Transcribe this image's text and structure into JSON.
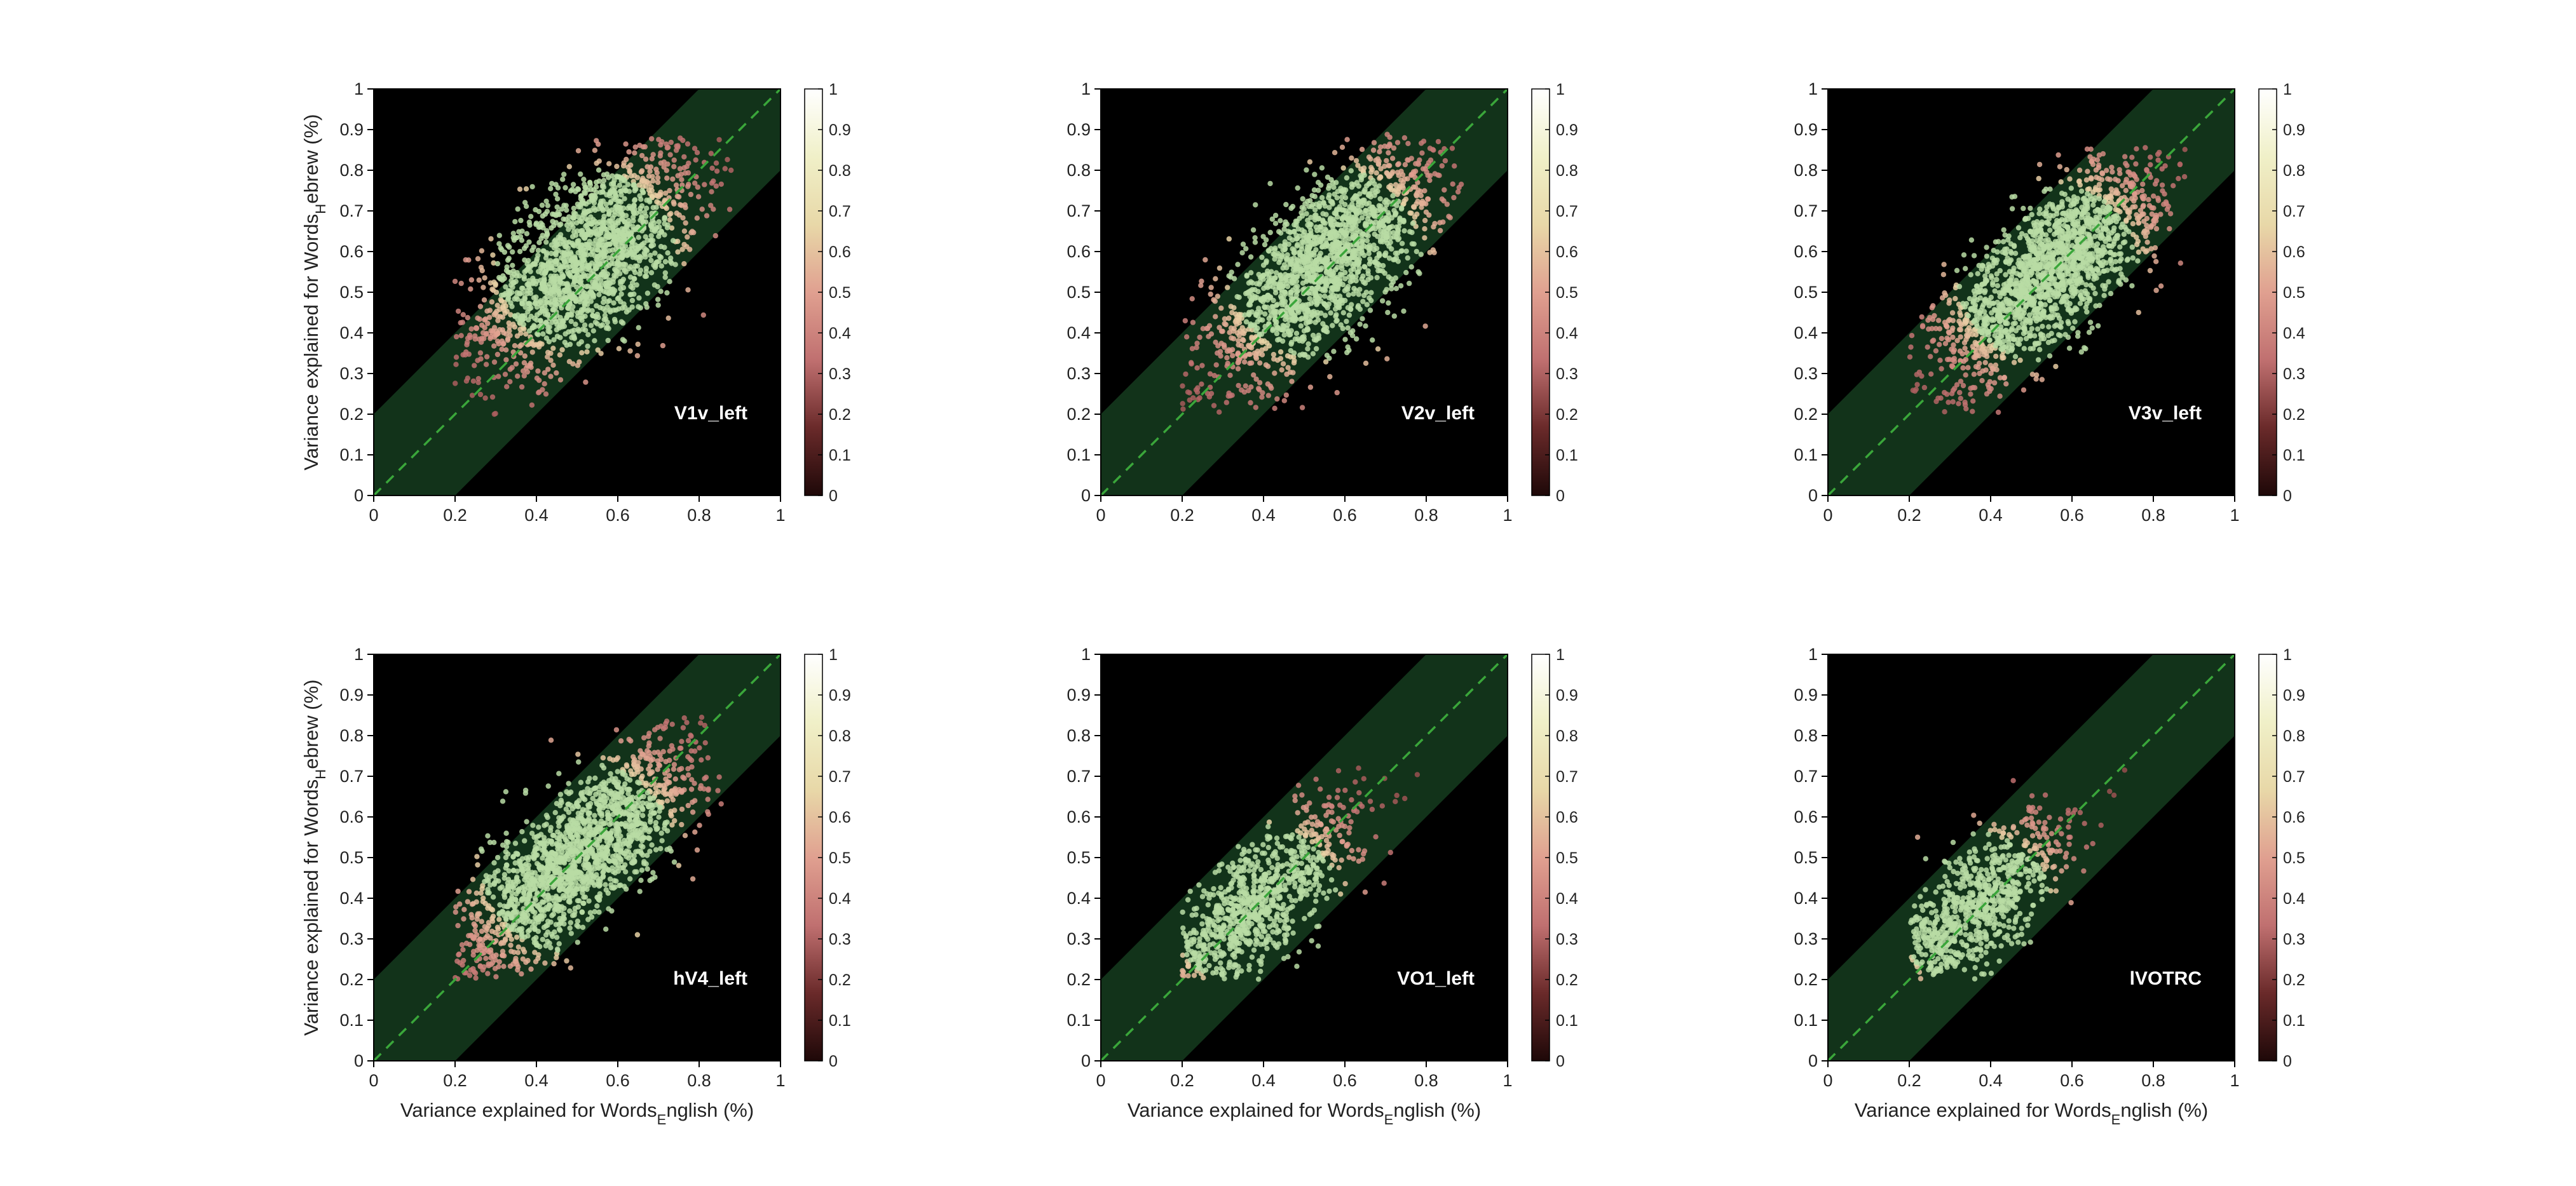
{
  "chart_data": {
    "type": "scatter",
    "layout": "2x3 grid",
    "xlabel": {
      "main": "Variance explained for Words",
      "sub": "E",
      "rest": "nglish (%)"
    },
    "ylabel": {
      "main": "Variance explained for Words",
      "sub": "H",
      "rest": "ebrew (%)"
    },
    "xlim": [
      0,
      1
    ],
    "ylim": [
      0,
      1
    ],
    "xticks": [
      "0",
      "0.2",
      "0.4",
      "0.6",
      "0.8",
      "1"
    ],
    "yticks": [
      "0",
      "0.1",
      "0.2",
      "0.3",
      "0.4",
      "0.5",
      "0.6",
      "0.7",
      "0.8",
      "0.9",
      "1"
    ],
    "colorbar": {
      "range": [
        0,
        1
      ],
      "ticks": [
        "0",
        "0.1",
        "0.2",
        "0.3",
        "0.4",
        "0.5",
        "0.6",
        "0.7",
        "0.8",
        "0.9",
        "1"
      ]
    },
    "identity_line": {
      "style": "dashed",
      "color": "#3aa63a"
    },
    "band_halfwidth": 0.2,
    "band_color": "#12331a",
    "background": "#000000",
    "colormap": [
      "#1e0808",
      "#6a2a2a",
      "#c07070",
      "#e0a090",
      "#e8d8a8",
      "#f0f0c8",
      "#ffffff"
    ],
    "point_cloud_color": "#b8dca4",
    "panels": [
      {
        "name": "V1v_left",
        "cloud": {
          "x_range": [
            0.2,
            0.88
          ],
          "y_range": [
            0.2,
            0.88
          ],
          "center": [
            0.52,
            0.58
          ],
          "spread": [
            0.14,
            0.14
          ],
          "corr": 0.62,
          "n": 1800
        }
      },
      {
        "name": "V2v_left",
        "cloud": {
          "x_range": [
            0.2,
            0.89
          ],
          "y_range": [
            0.2,
            0.89
          ],
          "center": [
            0.55,
            0.57
          ],
          "spread": [
            0.15,
            0.15
          ],
          "corr": 0.75,
          "n": 1800
        }
      },
      {
        "name": "V3v_left",
        "cloud": {
          "x_range": [
            0.2,
            0.88
          ],
          "y_range": [
            0.2,
            0.86
          ],
          "center": [
            0.54,
            0.55
          ],
          "spread": [
            0.14,
            0.14
          ],
          "corr": 0.76,
          "n": 1800
        }
      },
      {
        "name": "hV4_left",
        "cloud": {
          "x_range": [
            0.2,
            0.86
          ],
          "y_range": [
            0.2,
            0.85
          ],
          "center": [
            0.5,
            0.5
          ],
          "spread": [
            0.15,
            0.15
          ],
          "corr": 0.8,
          "n": 1800
        }
      },
      {
        "name": "VO1_left",
        "cloud": {
          "x_range": [
            0.2,
            0.8
          ],
          "y_range": [
            0.2,
            0.82
          ],
          "center": [
            0.38,
            0.38
          ],
          "spread": [
            0.13,
            0.13
          ],
          "corr": 0.8,
          "n": 1000
        }
      },
      {
        "name": "lVOTRC",
        "cloud": {
          "x_range": [
            0.2,
            0.76
          ],
          "y_range": [
            0.2,
            0.74
          ],
          "center": [
            0.36,
            0.37
          ],
          "spread": [
            0.12,
            0.12
          ],
          "corr": 0.78,
          "n": 900
        }
      }
    ]
  }
}
